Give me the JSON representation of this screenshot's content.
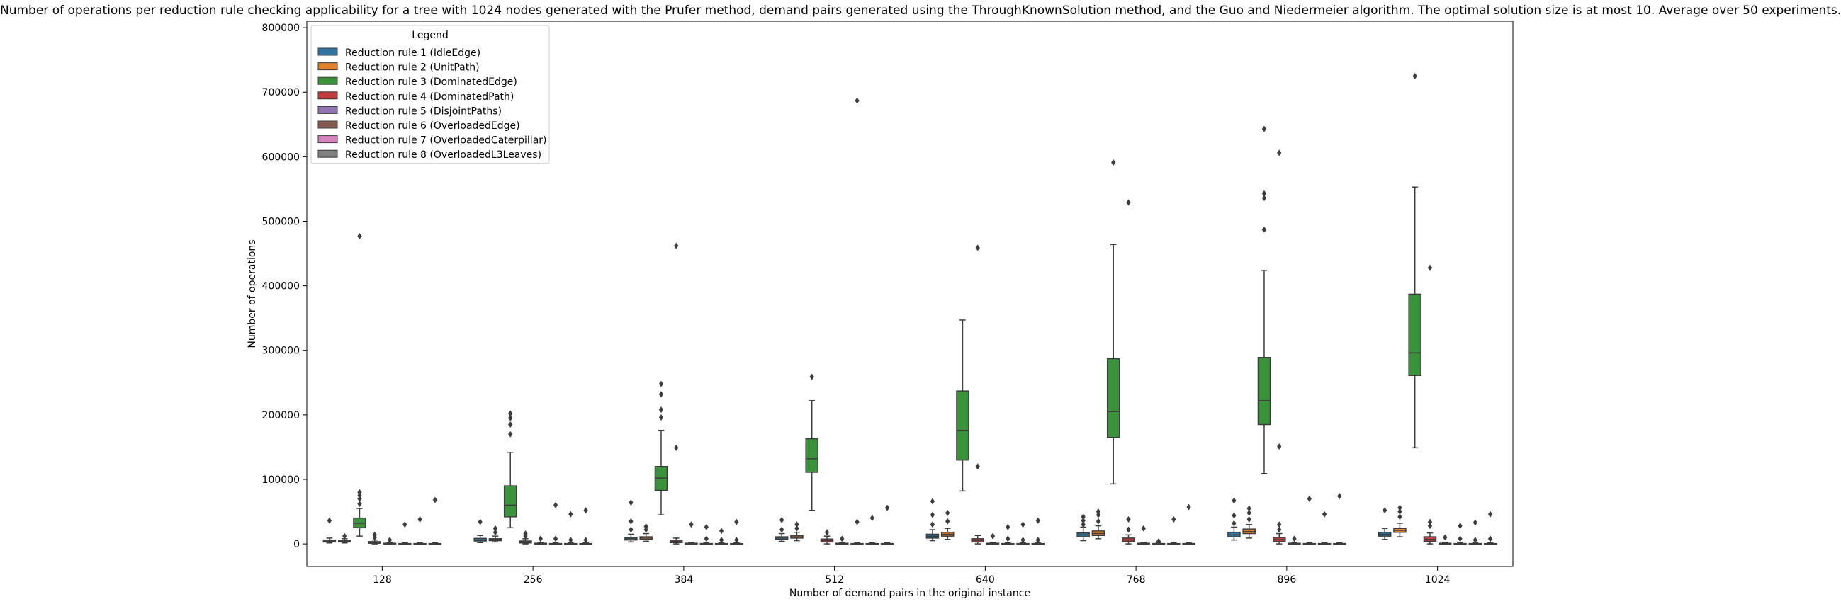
{
  "chart_data": {
    "type": "boxplot",
    "title": "Number of operations per reduction rule checking applicability for a tree with 1024 nodes generated with the Prufer method, demand pairs generated using the ThroughKnownSolution method, and the Guo and Niedermeier algorithm. The optimal solution size is at most 10. Average over 50 experiments.",
    "xlabel": "Number of demand pairs in the original instance",
    "ylabel": "Number of operations",
    "ylim": [
      -35000,
      810000
    ],
    "yticks": [
      0,
      100000,
      200000,
      300000,
      400000,
      500000,
      600000,
      700000,
      800000
    ],
    "ytick_labels": [
      "0",
      "100000",
      "200000",
      "300000",
      "400000",
      "500000",
      "600000",
      "700000",
      "800000"
    ],
    "categories": [
      "128",
      "256",
      "384",
      "512",
      "640",
      "768",
      "896",
      "1024"
    ],
    "legend": {
      "title": "Legend",
      "placement": "top-left"
    },
    "series": [
      {
        "name": "Reduction rule 1 (IdleEdge)",
        "color": "#3274a1",
        "stats": [
          {
            "q1": 3000,
            "med": 4500,
            "q3": 6000,
            "lo": 1500,
            "hi": 9000,
            "out": [
              36000
            ]
          },
          {
            "q1": 4500,
            "med": 6000,
            "q3": 8500,
            "lo": 2000,
            "hi": 13000,
            "out": [
              34000
            ]
          },
          {
            "q1": 6000,
            "med": 8000,
            "q3": 10000,
            "lo": 3000,
            "hi": 15000,
            "out": [
              22000,
              35000,
              64000
            ]
          },
          {
            "q1": 7000,
            "med": 9000,
            "q3": 11000,
            "lo": 4000,
            "hi": 16000,
            "out": [
              22000,
              37000
            ]
          },
          {
            "q1": 9000,
            "med": 12000,
            "q3": 15000,
            "lo": 5000,
            "hi": 22000,
            "out": [
              30000,
              45000,
              66000
            ]
          },
          {
            "q1": 11000,
            "med": 14000,
            "q3": 17000,
            "lo": 5000,
            "hi": 26000,
            "out": [
              30000,
              36000,
              42000
            ]
          },
          {
            "q1": 11000,
            "med": 14000,
            "q3": 18000,
            "lo": 6000,
            "hi": 26000,
            "out": [
              32000,
              44000,
              67000
            ]
          },
          {
            "q1": 12000,
            "med": 15000,
            "q3": 18000,
            "lo": 7000,
            "hi": 24000,
            "out": [
              52000
            ]
          }
        ]
      },
      {
        "name": "Reduction rule 2 (UnitPath)",
        "color": "#e1812c",
        "stats": [
          {
            "q1": 3000,
            "med": 4000,
            "q3": 5500,
            "lo": 1500,
            "hi": 8000,
            "out": [
              12000
            ]
          },
          {
            "q1": 5000,
            "med": 6500,
            "q3": 8000,
            "lo": 3000,
            "hi": 12000,
            "out": [
              18000,
              24000
            ]
          },
          {
            "q1": 7000,
            "med": 9000,
            "q3": 11000,
            "lo": 4000,
            "hi": 16000,
            "out": [
              22000,
              27000
            ]
          },
          {
            "q1": 9000,
            "med": 11000,
            "q3": 13000,
            "lo": 5000,
            "hi": 18000,
            "out": [
              24000,
              30000
            ]
          },
          {
            "q1": 12000,
            "med": 15000,
            "q3": 18000,
            "lo": 7000,
            "hi": 24000,
            "out": [
              35000,
              48000
            ]
          },
          {
            "q1": 13000,
            "med": 16000,
            "q3": 20000,
            "lo": 8000,
            "hi": 28000,
            "out": [
              35000,
              45000,
              50000
            ]
          },
          {
            "q1": 16000,
            "med": 19000,
            "q3": 23000,
            "lo": 9000,
            "hi": 30000,
            "out": [
              38000,
              48000,
              55000
            ]
          },
          {
            "q1": 18000,
            "med": 21000,
            "q3": 24000,
            "lo": 11000,
            "hi": 32000,
            "out": [
              42000,
              50000,
              56000
            ]
          }
        ]
      },
      {
        "name": "Reduction rule 3 (DominatedEdge)",
        "color": "#3a923a",
        "stats": [
          {
            "q1": 25000,
            "med": 32000,
            "q3": 40000,
            "lo": 12000,
            "hi": 55000,
            "out": [
              62000,
              70000,
              75000,
              80000,
              477000
            ]
          },
          {
            "q1": 42000,
            "med": 60000,
            "q3": 90000,
            "lo": 25000,
            "hi": 142000,
            "out": [
              170000,
              185000,
              195000,
              202000
            ]
          },
          {
            "q1": 83000,
            "med": 102000,
            "q3": 120000,
            "lo": 45000,
            "hi": 176000,
            "out": [
              196000,
              208000,
              232000,
              248000
            ]
          },
          {
            "q1": 111000,
            "med": 132000,
            "q3": 163000,
            "lo": 52000,
            "hi": 222000,
            "out": [
              259000
            ]
          },
          {
            "q1": 130000,
            "med": 176000,
            "q3": 237000,
            "lo": 82000,
            "hi": 347000,
            "out": []
          },
          {
            "q1": 165000,
            "med": 205000,
            "q3": 287000,
            "lo": 93000,
            "hi": 464000,
            "out": [
              591000
            ]
          },
          {
            "q1": 185000,
            "med": 222000,
            "q3": 289000,
            "lo": 109000,
            "hi": 424000,
            "out": [
              487000,
              536000,
              543000,
              643000
            ]
          },
          {
            "q1": 261000,
            "med": 296000,
            "q3": 387000,
            "lo": 149000,
            "hi": 553000,
            "out": [
              725000
            ]
          }
        ]
      },
      {
        "name": "Reduction rule 4 (DominatedPath)",
        "color": "#c03d3e",
        "stats": [
          {
            "q1": 1000,
            "med": 2000,
            "q3": 3500,
            "lo": 0,
            "hi": 6000,
            "out": [
              10000,
              14000
            ]
          },
          {
            "q1": 1500,
            "med": 3000,
            "q3": 4500,
            "lo": 0,
            "hi": 8000,
            "out": [
              12000,
              16000
            ]
          },
          {
            "q1": 2000,
            "med": 3500,
            "q3": 5500,
            "lo": 0,
            "hi": 9000,
            "out": [
              149000,
              462000
            ]
          },
          {
            "q1": 3000,
            "med": 5000,
            "q3": 7500,
            "lo": 0,
            "hi": 12000,
            "out": [
              18000
            ]
          },
          {
            "q1": 3000,
            "med": 5500,
            "q3": 8000,
            "lo": 0,
            "hi": 13000,
            "out": [
              120000,
              459000
            ]
          },
          {
            "q1": 3500,
            "med": 6000,
            "q3": 9000,
            "lo": 0,
            "hi": 14000,
            "out": [
              22000,
              38000,
              529000
            ]
          },
          {
            "q1": 3500,
            "med": 6500,
            "q3": 10000,
            "lo": 0,
            "hi": 16000,
            "out": [
              22000,
              30000,
              151000,
              606000
            ]
          },
          {
            "q1": 4000,
            "med": 7000,
            "q3": 11000,
            "lo": 0,
            "hi": 17000,
            "out": [
              28000,
              34000,
              428000
            ]
          }
        ]
      },
      {
        "name": "Reduction rule 5 (DisjointPaths)",
        "color": "#9372b2",
        "stats": [
          {
            "q1": 0,
            "med": 0,
            "q3": 1000,
            "lo": 0,
            "hi": 2500,
            "out": [
              6000
            ]
          },
          {
            "q1": 0,
            "med": 0,
            "q3": 1000,
            "lo": 0,
            "hi": 2500,
            "out": [
              8000
            ]
          },
          {
            "q1": 0,
            "med": 0,
            "q3": 1000,
            "lo": 0,
            "hi": 2500,
            "out": [
              30000
            ]
          },
          {
            "q1": 0,
            "med": 0,
            "q3": 1000,
            "lo": 0,
            "hi": 2500,
            "out": [
              8000
            ]
          },
          {
            "q1": 0,
            "med": 0,
            "q3": 1000,
            "lo": 0,
            "hi": 2500,
            "out": [
              12000
            ]
          },
          {
            "q1": 0,
            "med": 0,
            "q3": 1000,
            "lo": 0,
            "hi": 2500,
            "out": [
              24000
            ]
          },
          {
            "q1": 0,
            "med": 0,
            "q3": 1000,
            "lo": 0,
            "hi": 2500,
            "out": [
              8000
            ]
          },
          {
            "q1": 0,
            "med": 0,
            "q3": 1000,
            "lo": 0,
            "hi": 2500,
            "out": [
              10000
            ]
          }
        ]
      },
      {
        "name": "Reduction rule 6 (OverloadedEdge)",
        "color": "#845b53",
        "stats": [
          {
            "q1": 0,
            "med": 0,
            "q3": 500,
            "lo": 0,
            "hi": 1500,
            "out": [
              30000
            ]
          },
          {
            "q1": 0,
            "med": 0,
            "q3": 500,
            "lo": 0,
            "hi": 1500,
            "out": [
              8000,
              60000
            ]
          },
          {
            "q1": 0,
            "med": 0,
            "q3": 500,
            "lo": 0,
            "hi": 1500,
            "out": [
              8000,
              26000
            ]
          },
          {
            "q1": 0,
            "med": 0,
            "q3": 500,
            "lo": 0,
            "hi": 1500,
            "out": [
              34000,
              687000
            ]
          },
          {
            "q1": 0,
            "med": 0,
            "q3": 500,
            "lo": 0,
            "hi": 1500,
            "out": [
              8000,
              26000
            ]
          },
          {
            "q1": 0,
            "med": 0,
            "q3": 500,
            "lo": 0,
            "hi": 1500,
            "out": [
              4000
            ]
          },
          {
            "q1": 0,
            "med": 0,
            "q3": 500,
            "lo": 0,
            "hi": 1500,
            "out": [
              70000
            ]
          },
          {
            "q1": 0,
            "med": 0,
            "q3": 500,
            "lo": 0,
            "hi": 1500,
            "out": [
              8000,
              28000
            ]
          }
        ]
      },
      {
        "name": "Reduction rule 7 (OverloadedCaterpillar)",
        "color": "#d684bd",
        "stats": [
          {
            "q1": 0,
            "med": 0,
            "q3": 500,
            "lo": 0,
            "hi": 1500,
            "out": [
              38000
            ]
          },
          {
            "q1": 0,
            "med": 0,
            "q3": 500,
            "lo": 0,
            "hi": 1500,
            "out": [
              6000,
              46000
            ]
          },
          {
            "q1": 0,
            "med": 0,
            "q3": 500,
            "lo": 0,
            "hi": 1500,
            "out": [
              6000,
              20000
            ]
          },
          {
            "q1": 0,
            "med": 0,
            "q3": 500,
            "lo": 0,
            "hi": 1500,
            "out": [
              40000
            ]
          },
          {
            "q1": 0,
            "med": 0,
            "q3": 500,
            "lo": 0,
            "hi": 1500,
            "out": [
              6000,
              30000
            ]
          },
          {
            "q1": 0,
            "med": 0,
            "q3": 500,
            "lo": 0,
            "hi": 1500,
            "out": [
              38000
            ]
          },
          {
            "q1": 0,
            "med": 0,
            "q3": 500,
            "lo": 0,
            "hi": 1500,
            "out": [
              46000
            ]
          },
          {
            "q1": 0,
            "med": 0,
            "q3": 500,
            "lo": 0,
            "hi": 1500,
            "out": [
              6000,
              33000
            ]
          }
        ]
      },
      {
        "name": "Reduction rule 8 (OverloadedL3Leaves)",
        "color": "#7f7f7f",
        "stats": [
          {
            "q1": 0,
            "med": 0,
            "q3": 500,
            "lo": 0,
            "hi": 1500,
            "out": [
              68000
            ]
          },
          {
            "q1": 0,
            "med": 0,
            "q3": 500,
            "lo": 0,
            "hi": 1500,
            "out": [
              6000,
              52000
            ]
          },
          {
            "q1": 0,
            "med": 0,
            "q3": 500,
            "lo": 0,
            "hi": 1500,
            "out": [
              6000,
              34000
            ]
          },
          {
            "q1": 0,
            "med": 0,
            "q3": 500,
            "lo": 0,
            "hi": 1500,
            "out": [
              56000
            ]
          },
          {
            "q1": 0,
            "med": 0,
            "q3": 500,
            "lo": 0,
            "hi": 1500,
            "out": [
              6000,
              36000
            ]
          },
          {
            "q1": 0,
            "med": 0,
            "q3": 500,
            "lo": 0,
            "hi": 1500,
            "out": [
              57000
            ]
          },
          {
            "q1": 0,
            "med": 0,
            "q3": 500,
            "lo": 0,
            "hi": 1500,
            "out": [
              74000
            ]
          },
          {
            "q1": 0,
            "med": 0,
            "q3": 500,
            "lo": 0,
            "hi": 1500,
            "out": [
              8000,
              46000
            ]
          }
        ]
      }
    ]
  }
}
